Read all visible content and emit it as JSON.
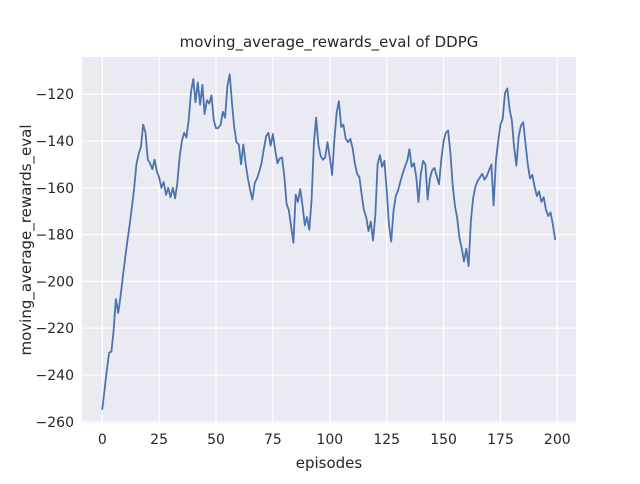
{
  "figure": {
    "title": "moving_average_rewards_eval of DDPG",
    "xlabel": "episodes",
    "ylabel": "moving_average_rewards_eval"
  },
  "chart_data": {
    "type": "line",
    "title": "moving_average_rewards_eval of DDPG",
    "xlabel": "episodes",
    "ylabel": "moving_average_rewards_eval",
    "legend": null,
    "grid": true,
    "x_start": 0,
    "x_step": 1,
    "xlim": [
      -8.9,
      208.2
    ],
    "ylim": [
      -260.5,
      -104.1
    ],
    "xticks": [
      0,
      25,
      50,
      75,
      100,
      125,
      150,
      175,
      200
    ],
    "xticklabels": [
      "0",
      "25",
      "50",
      "75",
      "100",
      "125",
      "150",
      "175",
      "200"
    ],
    "yticks": [
      -120,
      -140,
      -160,
      -180,
      -200,
      -220,
      -240,
      -260
    ],
    "yticklabels": [
      "−120",
      "−140",
      "−160",
      "−180",
      "−200",
      "−220",
      "−240",
      "−260"
    ],
    "line_color": "#4c72b0",
    "axes_bg_color": "#eaeaf2",
    "grid_color": "#ffffff",
    "text_color": "#262626",
    "values": [
      -254.5,
      -246.5,
      -238,
      -230.5,
      -230,
      -221,
      -207.5,
      -213.5,
      -206.5,
      -198.5,
      -190.5,
      -183,
      -176,
      -168.5,
      -160.5,
      -150,
      -145.5,
      -142.5,
      -133,
      -136.5,
      -148,
      -149.5,
      -152,
      -148,
      -153,
      -155.5,
      -160,
      -157.5,
      -163,
      -160,
      -164,
      -160,
      -164.5,
      -158,
      -147,
      -140,
      -136.5,
      -138.5,
      -131,
      -119,
      -113.5,
      -123.5,
      -115,
      -124.5,
      -116,
      -128.5,
      -122.5,
      -124,
      -120.5,
      -131,
      -134.5,
      -134.5,
      -133,
      -127.5,
      -130,
      -116.5,
      -111.5,
      -124,
      -134,
      -140.5,
      -141.5,
      -150,
      -141.5,
      -149.5,
      -156,
      -161,
      -165,
      -158,
      -156,
      -153,
      -149.5,
      -143.5,
      -138,
      -136.5,
      -142,
      -137,
      -144,
      -149.5,
      -147.5,
      -147,
      -155,
      -167,
      -169.5,
      -176.5,
      -183.5,
      -163,
      -166,
      -160.5,
      -167.5,
      -176,
      -172.5,
      -178,
      -165,
      -141,
      -130,
      -141.5,
      -146.5,
      -148,
      -147,
      -140.5,
      -147,
      -154.5,
      -140,
      -128,
      -123,
      -134,
      -133,
      -139,
      -140.5,
      -139,
      -143,
      -149.5,
      -154,
      -155.5,
      -163,
      -169.5,
      -172.5,
      -178.5,
      -174.5,
      -182.5,
      -172,
      -150,
      -146,
      -151,
      -148.5,
      -161,
      -176,
      -183,
      -170,
      -163.5,
      -161,
      -157.5,
      -154,
      -151,
      -148.5,
      -143.5,
      -151,
      -149.5,
      -155.5,
      -166,
      -154,
      -148.5,
      -150,
      -165,
      -156,
      -152.5,
      -151.5,
      -155,
      -158.5,
      -148,
      -140,
      -136.5,
      -135.5,
      -145,
      -159,
      -167.5,
      -173,
      -181.5,
      -186,
      -191.5,
      -186,
      -193.5,
      -174,
      -164.5,
      -159.5,
      -157,
      -155.5,
      -154,
      -156.5,
      -155,
      -152.5,
      -150,
      -167.5,
      -148.5,
      -140,
      -133,
      -130.5,
      -119.5,
      -117.5,
      -126.5,
      -131,
      -142.5,
      -150.5,
      -138,
      -133.5,
      -132,
      -141,
      -150,
      -156,
      -154.5,
      -159.5,
      -163.5,
      -161.5,
      -166,
      -164,
      -169.5,
      -172,
      -170.5,
      -175.5,
      -182
    ]
  }
}
